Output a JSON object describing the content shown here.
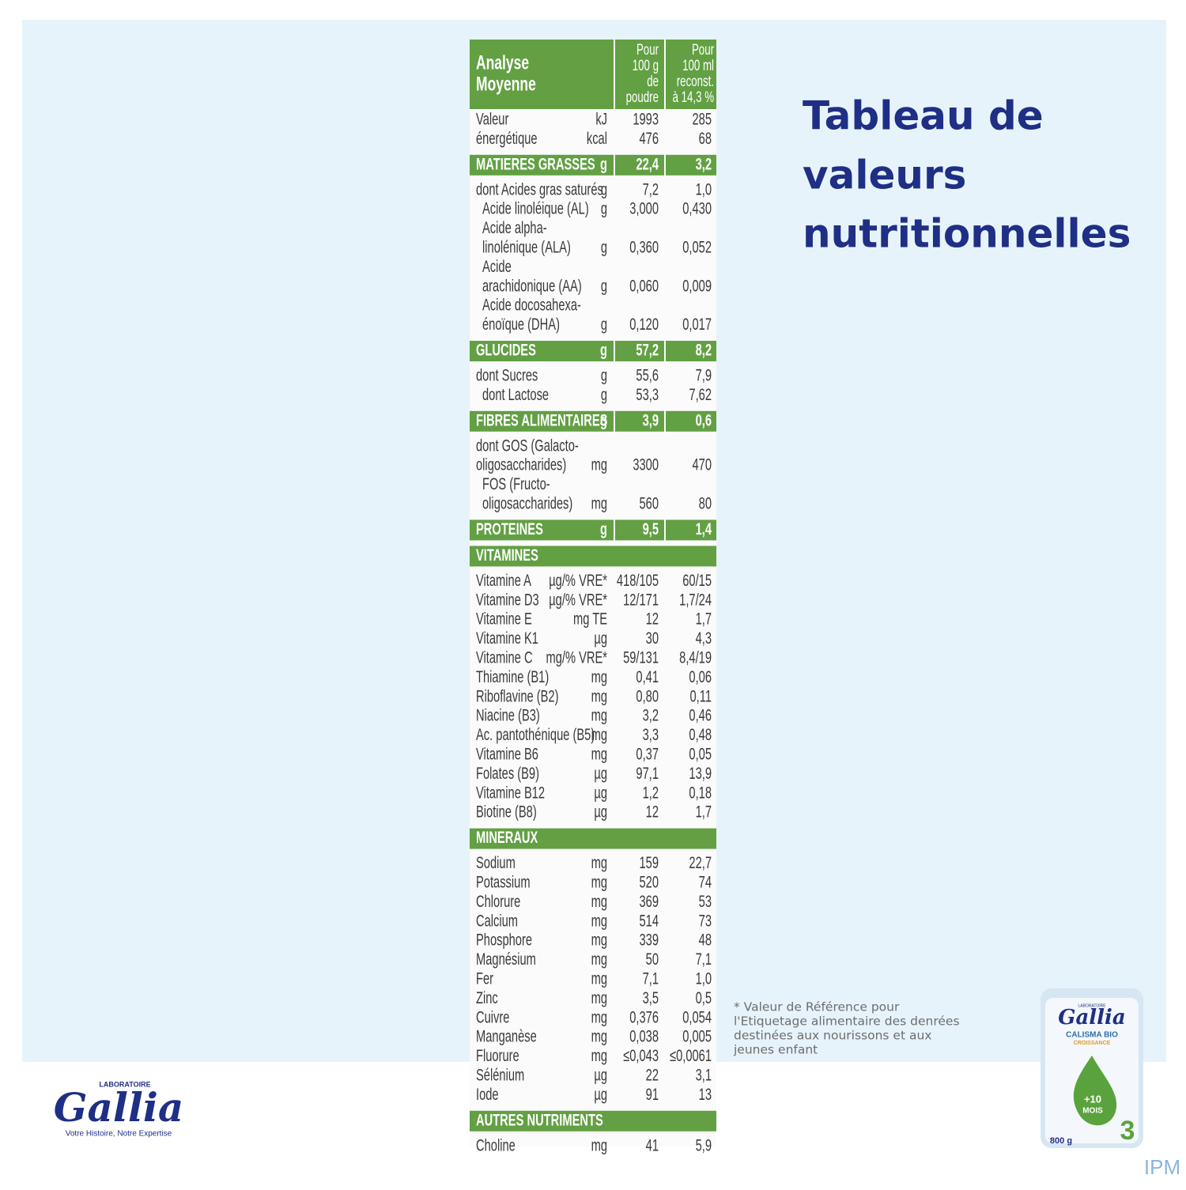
{
  "title": [
    "Tableau de",
    "valeurs",
    "nutritionnelles"
  ],
  "footnote": [
    "* Valeur de Référence pour",
    "l'Etiquetage alimentaire des denrées",
    "destinées aux nourissons et aux",
    "jeunes enfant"
  ],
  "logo": {
    "top": "LABORATOIRE",
    "brand": "Gallia",
    "tagline": "Votre Histoire, Notre Expertise"
  },
  "product": {
    "top": "LABORATOIRE",
    "brand": "Gallia",
    "name": "CALISMA BIO",
    "subname": "CROISSANCE",
    "age": "+10",
    "age_unit": "MOIS",
    "stage": "3",
    "weight": "800 g"
  },
  "watermark": "IPM",
  "table": {
    "header": {
      "label": [
        "Analyse",
        "Moyenne"
      ],
      "per100g": [
        "Pour",
        "100 g",
        "de",
        "poudre"
      ],
      "per100ml": [
        "Pour",
        "100 ml",
        "reconst.",
        "à 14,3 %"
      ]
    },
    "groups": [
      {
        "rows": [
          {
            "label": [
              "Valeur"
            ],
            "unit": "kJ",
            "per100g": "1993",
            "per100ml": "285"
          },
          {
            "label": [
              "énergétique"
            ],
            "unit": "kcal",
            "per100g": "476",
            "per100ml": "68"
          }
        ]
      },
      {
        "heading": {
          "label": "MATIERES GRASSES",
          "unit": "g",
          "per100g": "22,4",
          "per100ml": "3,2"
        },
        "rows": [
          {
            "label": [
              "dont Acides gras saturés"
            ],
            "unit": "g",
            "per100g": "7,2",
            "per100ml": "1,0"
          },
          {
            "label": [
              "Acide linoléique (AL)"
            ],
            "indent": true,
            "unit": "g",
            "per100g": "3,000",
            "per100ml": "0,430"
          },
          {
            "label": [
              "Acide alpha-",
              "linolénique (ALA)"
            ],
            "indent": true,
            "unit": "g",
            "per100g": "0,360",
            "per100ml": "0,052"
          },
          {
            "label": [
              "Acide",
              "arachidonique (AA)"
            ],
            "indent": true,
            "unit": "g",
            "per100g": "0,060",
            "per100ml": "0,009"
          },
          {
            "label": [
              "Acide docosahexa-",
              "énoïque (DHA)"
            ],
            "indent": true,
            "unit": "g",
            "per100g": "0,120",
            "per100ml": "0,017"
          }
        ]
      },
      {
        "heading": {
          "label": "GLUCIDES",
          "unit": "g",
          "per100g": "57,2",
          "per100ml": "8,2"
        },
        "rows": [
          {
            "label": [
              "dont Sucres"
            ],
            "unit": "g",
            "per100g": "55,6",
            "per100ml": "7,9"
          },
          {
            "label": [
              "dont Lactose"
            ],
            "indent": true,
            "unit": "g",
            "per100g": "53,3",
            "per100ml": "7,62"
          }
        ]
      },
      {
        "heading": {
          "label": "FIBRES ALIMENTAIRES",
          "unit": "g",
          "per100g": "3,9",
          "per100ml": "0,6"
        },
        "rows": [
          {
            "label": [
              "dont GOS (Galacto-",
              "oligosaccharides)"
            ],
            "unit": "mg",
            "per100g": "3300",
            "per100ml": "470"
          },
          {
            "label": [
              "FOS (Fructo-",
              "oligosaccharides)"
            ],
            "indent": true,
            "unit": "mg",
            "per100g": "560",
            "per100ml": "80"
          }
        ]
      },
      {
        "heading": {
          "label": "PROTEINES",
          "unit": "g",
          "per100g": "9,5",
          "per100ml": "1,4"
        },
        "rows": []
      },
      {
        "heading": {
          "label": "VITAMINES"
        },
        "rows": [
          {
            "label": [
              "Vitamine A"
            ],
            "unit": "µg/% VRE*",
            "per100g": "418/105",
            "per100ml": "60/15"
          },
          {
            "label": [
              "Vitamine D3"
            ],
            "unit": "µg/% VRE*",
            "per100g": "12/171",
            "per100ml": "1,7/24"
          },
          {
            "label": [
              "Vitamine E"
            ],
            "unit": "mg TE",
            "per100g": "12",
            "per100ml": "1,7"
          },
          {
            "label": [
              "Vitamine K1"
            ],
            "unit": "µg",
            "per100g": "30",
            "per100ml": "4,3"
          },
          {
            "label": [
              "Vitamine C"
            ],
            "unit": "mg/% VRE*",
            "per100g": "59/131",
            "per100ml": "8,4/19"
          },
          {
            "label": [
              "Thiamine (B1)"
            ],
            "unit": "mg",
            "per100g": "0,41",
            "per100ml": "0,06"
          },
          {
            "label": [
              "Riboflavine (B2)"
            ],
            "unit": "mg",
            "per100g": "0,80",
            "per100ml": "0,11"
          },
          {
            "label": [
              "Niacine (B3)"
            ],
            "unit": "mg",
            "per100g": "3,2",
            "per100ml": "0,46"
          },
          {
            "label": [
              "Ac. pantothénique (B5)"
            ],
            "unit": "mg",
            "per100g": "3,3",
            "per100ml": "0,48"
          },
          {
            "label": [
              "Vitamine B6"
            ],
            "unit": "mg",
            "per100g": "0,37",
            "per100ml": "0,05"
          },
          {
            "label": [
              "Folates (B9)"
            ],
            "unit": "µg",
            "per100g": "97,1",
            "per100ml": "13,9"
          },
          {
            "label": [
              "Vitamine B12"
            ],
            "unit": "µg",
            "per100g": "1,2",
            "per100ml": "0,18"
          },
          {
            "label": [
              "Biotine (B8)"
            ],
            "unit": "µg",
            "per100g": "12",
            "per100ml": "1,7"
          }
        ]
      },
      {
        "heading": {
          "label": "MINERAUX"
        },
        "rows": [
          {
            "label": [
              "Sodium"
            ],
            "unit": "mg",
            "per100g": "159",
            "per100ml": "22,7"
          },
          {
            "label": [
              "Potassium"
            ],
            "unit": "mg",
            "per100g": "520",
            "per100ml": "74"
          },
          {
            "label": [
              "Chlorure"
            ],
            "unit": "mg",
            "per100g": "369",
            "per100ml": "53"
          },
          {
            "label": [
              "Calcium"
            ],
            "unit": "mg",
            "per100g": "514",
            "per100ml": "73"
          },
          {
            "label": [
              "Phosphore"
            ],
            "unit": "mg",
            "per100g": "339",
            "per100ml": "48"
          },
          {
            "label": [
              "Magnésium"
            ],
            "unit": "mg",
            "per100g": "50",
            "per100ml": "7,1"
          },
          {
            "label": [
              "Fer"
            ],
            "unit": "mg",
            "per100g": "7,1",
            "per100ml": "1,0"
          },
          {
            "label": [
              "Zinc"
            ],
            "unit": "mg",
            "per100g": "3,5",
            "per100ml": "0,5"
          },
          {
            "label": [
              "Cuivre"
            ],
            "unit": "mg",
            "per100g": "0,376",
            "per100ml": "0,054"
          },
          {
            "label": [
              "Manganèse"
            ],
            "unit": "mg",
            "per100g": "0,038",
            "per100ml": "0,005"
          },
          {
            "label": [
              "Fluorure"
            ],
            "unit": "mg",
            "per100g": "≤0,043",
            "per100ml": "≤0,0061"
          },
          {
            "label": [
              "Sélénium"
            ],
            "unit": "µg",
            "per100g": "22",
            "per100ml": "3,1"
          },
          {
            "label": [
              "Iode"
            ],
            "unit": "µg",
            "per100g": "91",
            "per100ml": "13"
          }
        ]
      },
      {
        "heading": {
          "label": "AUTRES NUTRIMENTS"
        },
        "rows": [
          {
            "label": [
              "Choline"
            ],
            "unit": "mg",
            "per100g": "41",
            "per100ml": "5,9"
          }
        ]
      }
    ]
  }
}
